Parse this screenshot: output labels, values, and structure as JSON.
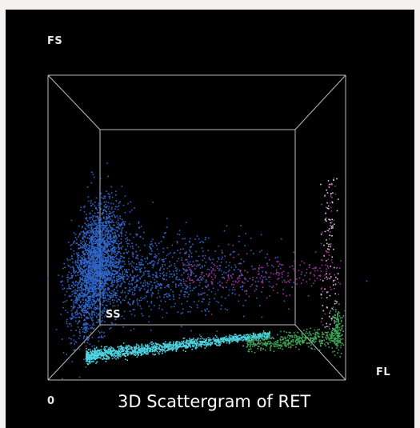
{
  "caption": "3D Scattergram of RET",
  "axes": {
    "fs": "FS",
    "fl": "FL",
    "ss": "SS",
    "origin": "0"
  },
  "colors": {
    "background": "#000000",
    "frame_lines": "#bdbdbd",
    "cluster_blue": "#2f64c8",
    "cluster_cyan": "#4fd3e0",
    "cluster_magenta": "#a030a0",
    "cluster_green": "#3fa85a",
    "label_text": "#ffffff"
  },
  "chart_data": {
    "type": "scatter",
    "title": "3D Scattergram of RET",
    "xlabel": "FL",
    "ylabel": "FS",
    "zlabel": "SS",
    "grid": false
  }
}
